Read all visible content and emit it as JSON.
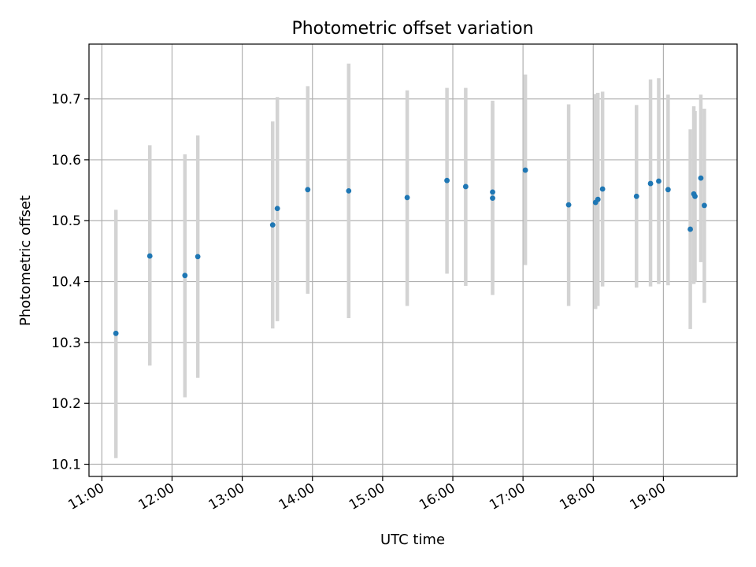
{
  "chart_data": {
    "type": "scatter",
    "title": "Photometric offset variation",
    "xlabel": "UTC time",
    "ylabel": "Photometric offset",
    "grid": true,
    "xlim": [
      "10:49",
      "20:03"
    ],
    "ylim": [
      10.08,
      10.79
    ],
    "x_ticks": [
      "11:00",
      "12:00",
      "13:00",
      "14:00",
      "15:00",
      "16:00",
      "17:00",
      "18:00",
      "19:00"
    ],
    "y_ticks": [
      "10.1",
      "10.2",
      "10.3",
      "10.4",
      "10.5",
      "10.6",
      "10.7"
    ],
    "colors": {
      "point": "#1f77b4",
      "error_bar": "#d3d3d3",
      "grid": "#b0b0b0"
    },
    "series": [
      {
        "points": [
          {
            "x": "11:12",
            "y": 10.315,
            "ylow": 10.11,
            "yhigh": 10.518
          },
          {
            "x": "11:41",
            "y": 10.442,
            "ylow": 10.262,
            "yhigh": 10.624
          },
          {
            "x": "12:11",
            "y": 10.41,
            "ylow": 10.21,
            "yhigh": 10.609
          },
          {
            "x": "12:22",
            "y": 10.441,
            "ylow": 10.242,
            "yhigh": 10.64
          },
          {
            "x": "13:26",
            "y": 10.493,
            "ylow": 10.323,
            "yhigh": 10.663
          },
          {
            "x": "13:30",
            "y": 10.52,
            "ylow": 10.335,
            "yhigh": 10.703
          },
          {
            "x": "13:56",
            "y": 10.551,
            "ylow": 10.38,
            "yhigh": 10.721
          },
          {
            "x": "14:31",
            "y": 10.549,
            "ylow": 10.34,
            "yhigh": 10.758
          },
          {
            "x": "15:21",
            "y": 10.538,
            "ylow": 10.36,
            "yhigh": 10.714
          },
          {
            "x": "15:55",
            "y": 10.566,
            "ylow": 10.413,
            "yhigh": 10.718
          },
          {
            "x": "16:11",
            "y": 10.556,
            "ylow": 10.393,
            "yhigh": 10.718
          },
          {
            "x": "16:34",
            "y": 10.547,
            "ylow": 10.4,
            "yhigh": 10.697
          },
          {
            "x": "16:34",
            "y": 10.537,
            "ylow": 10.378,
            "yhigh": 10.692
          },
          {
            "x": "17:02",
            "y": 10.583,
            "ylow": 10.427,
            "yhigh": 10.74
          },
          {
            "x": "17:39",
            "y": 10.526,
            "ylow": 10.36,
            "yhigh": 10.691
          },
          {
            "x": "18:02",
            "y": 10.53,
            "ylow": 10.355,
            "yhigh": 10.708
          },
          {
            "x": "18:04",
            "y": 10.535,
            "ylow": 10.36,
            "yhigh": 10.71
          },
          {
            "x": "18:08",
            "y": 10.552,
            "ylow": 10.392,
            "yhigh": 10.712
          },
          {
            "x": "18:37",
            "y": 10.54,
            "ylow": 10.39,
            "yhigh": 10.69
          },
          {
            "x": "18:49",
            "y": 10.561,
            "ylow": 10.392,
            "yhigh": 10.732
          },
          {
            "x": "18:56",
            "y": 10.565,
            "ylow": 10.396,
            "yhigh": 10.734
          },
          {
            "x": "19:04",
            "y": 10.551,
            "ylow": 10.394,
            "yhigh": 10.707
          },
          {
            "x": "19:23",
            "y": 10.486,
            "ylow": 10.322,
            "yhigh": 10.65
          },
          {
            "x": "19:26",
            "y": 10.544,
            "ylow": 10.396,
            "yhigh": 10.688
          },
          {
            "x": "19:27",
            "y": 10.54,
            "ylow": 10.4,
            "yhigh": 10.68
          },
          {
            "x": "19:32",
            "y": 10.57,
            "ylow": 10.432,
            "yhigh": 10.707
          },
          {
            "x": "19:35",
            "y": 10.525,
            "ylow": 10.365,
            "yhigh": 10.684
          }
        ]
      }
    ]
  }
}
